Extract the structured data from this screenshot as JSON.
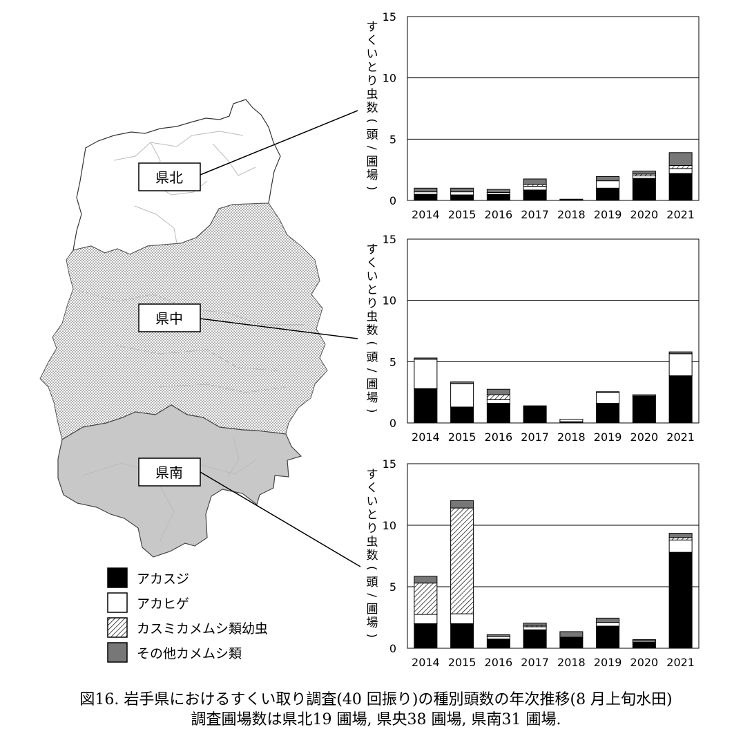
{
  "colors": {
    "akasuji": "#000000",
    "akahige": "#ffffff",
    "kasumi": "hatched",
    "other": "#777777",
    "north_region": "#ffffff",
    "central_region": "dotted",
    "south_region": "#c8c8c8"
  },
  "map": {
    "regions": [
      {
        "label": "県北"
      },
      {
        "label": "県中"
      },
      {
        "label": "県南"
      }
    ]
  },
  "legend": {
    "items": [
      {
        "label": "アカスジ",
        "key": "akasuji"
      },
      {
        "label": "アカヒゲ",
        "key": "akahige"
      },
      {
        "label": "カスミカメムシ類幼虫",
        "key": "kasumi"
      },
      {
        "label": "その他カメムシ類",
        "key": "other"
      }
    ]
  },
  "chart_data": [
    {
      "type": "bar",
      "stacked": true,
      "region": "県北",
      "categories": [
        "2014",
        "2015",
        "2016",
        "2017",
        "2018",
        "2019",
        "2020",
        "2021"
      ],
      "ylabel": "すくいとり虫数(頭/圃場)",
      "ylim": [
        0,
        15
      ],
      "yticks": [
        "0",
        "5",
        "10",
        "15"
      ],
      "grid": true,
      "series": [
        {
          "name": "アカスジ",
          "key": "akasuji",
          "values": [
            0.5,
            0.45,
            0.5,
            0.85,
            0.1,
            1.0,
            1.8,
            2.2
          ]
        },
        {
          "name": "アカヒゲ",
          "key": "akahige",
          "values": [
            0.2,
            0.25,
            0.15,
            0.3,
            0.0,
            0.6,
            0.2,
            0.4
          ]
        },
        {
          "name": "カスミカメムシ類幼虫",
          "key": "kasumi",
          "values": [
            0.0,
            0.0,
            0.0,
            0.15,
            0.0,
            0.0,
            0.15,
            0.25
          ]
        },
        {
          "name": "その他カメムシ類",
          "key": "other",
          "values": [
            0.3,
            0.3,
            0.25,
            0.45,
            0.0,
            0.35,
            0.25,
            1.05
          ]
        }
      ]
    },
    {
      "type": "bar",
      "stacked": true,
      "region": "県中",
      "categories": [
        "2014",
        "2015",
        "2016",
        "2017",
        "2018",
        "2019",
        "2020",
        "2021"
      ],
      "ylabel": "すくいとり虫数(頭/圃場)",
      "ylim": [
        0,
        15
      ],
      "yticks": [
        "0",
        "5",
        "10",
        "15"
      ],
      "grid": true,
      "series": [
        {
          "name": "アカスジ",
          "key": "akasuji",
          "values": [
            2.8,
            1.3,
            1.6,
            1.4,
            0.1,
            1.6,
            2.2,
            3.85
          ]
        },
        {
          "name": "アカヒゲ",
          "key": "akahige",
          "values": [
            2.4,
            1.9,
            0.3,
            0.0,
            0.2,
            0.9,
            0.0,
            1.8
          ]
        },
        {
          "name": "カスミカメムシ類幼虫",
          "key": "kasumi",
          "values": [
            0.0,
            0.0,
            0.4,
            0.0,
            0.0,
            0.0,
            0.0,
            0.0
          ]
        },
        {
          "name": "その他カメムシ類",
          "key": "other",
          "values": [
            0.1,
            0.15,
            0.45,
            0.0,
            0.0,
            0.05,
            0.1,
            0.15
          ]
        }
      ]
    },
    {
      "type": "bar",
      "stacked": true,
      "region": "県南",
      "categories": [
        "2014",
        "2015",
        "2016",
        "2017",
        "2018",
        "2019",
        "2020",
        "2021"
      ],
      "ylabel": "すくいとり虫数(頭/圃場)",
      "ylim": [
        0,
        15
      ],
      "yticks": [
        "0",
        "5",
        "10",
        "15"
      ],
      "grid": true,
      "series": [
        {
          "name": "アカスジ",
          "key": "akasuji",
          "values": [
            2.0,
            2.0,
            0.75,
            1.5,
            0.9,
            1.8,
            0.5,
            7.8
          ]
        },
        {
          "name": "アカヒゲ",
          "key": "akahige",
          "values": [
            0.75,
            0.8,
            0.2,
            0.25,
            0.0,
            0.3,
            0.1,
            1.0
          ]
        },
        {
          "name": "カスミカメムシ類幼虫",
          "key": "kasumi",
          "values": [
            2.55,
            8.6,
            0.0,
            0.1,
            0.0,
            0.0,
            0.0,
            0.2
          ]
        },
        {
          "name": "その他カメムシ類",
          "key": "other",
          "values": [
            0.55,
            0.6,
            0.15,
            0.2,
            0.45,
            0.35,
            0.1,
            0.35
          ]
        }
      ]
    }
  ],
  "caption": {
    "line1": "図16. 岩手県におけるすくい取り調査(40 回振り)の種別頭数の年次推移(8 月上旬水田)",
    "line2": "調査圃場数は県北19 圃場, 県央38 圃場, 県南31 圃場."
  }
}
